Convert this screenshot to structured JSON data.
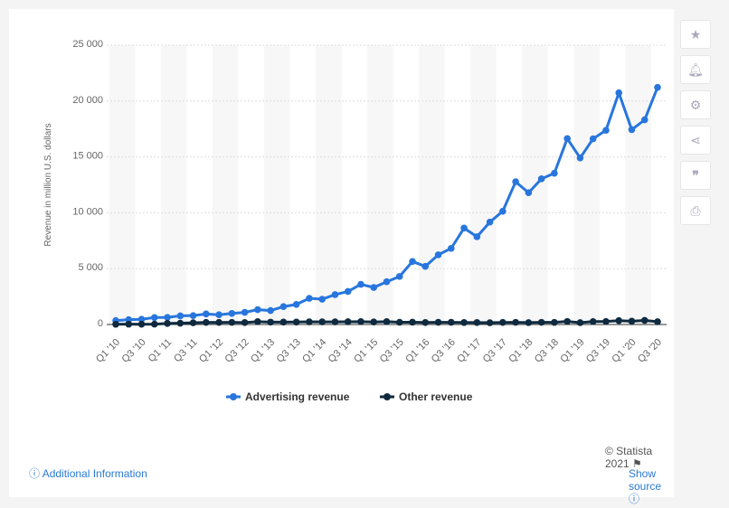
{
  "chart_data": {
    "type": "line",
    "ylabel": "Revenue in million U.S. dollars",
    "ylim": [
      0,
      25000
    ],
    "yticks": [
      0,
      5000,
      10000,
      15000,
      20000,
      25000
    ],
    "ytick_labels": [
      "0",
      "5 000",
      "10 000",
      "15 000",
      "20 000",
      "25 000"
    ],
    "grid": true,
    "legend_position": "bottom",
    "x": [
      "Q1 '10",
      "Q2 '10",
      "Q3 '10",
      "Q4 '10",
      "Q1 '11",
      "Q2 '11",
      "Q3 '11",
      "Q4 '11",
      "Q1 '12",
      "Q2 '12",
      "Q3 '12",
      "Q4 '12",
      "Q1 '13",
      "Q2 '13",
      "Q3 '13",
      "Q4 '13",
      "Q1 '14",
      "Q2 '14",
      "Q3 '14",
      "Q4 '14",
      "Q1 '15",
      "Q2 '15",
      "Q3 '15",
      "Q4 '15",
      "Q1 '16",
      "Q2 '16",
      "Q3 '16",
      "Q4 '16",
      "Q1 '17",
      "Q2 '17",
      "Q3 '17",
      "Q4 '17",
      "Q1 '18",
      "Q2 '18",
      "Q3 '18",
      "Q4 '18",
      "Q1 '19",
      "Q2 '19",
      "Q3 '19",
      "Q4 '19",
      "Q1 '20",
      "Q2 '20",
      "Q3 '20"
    ],
    "series": [
      {
        "name": "Advertising revenue",
        "color": "#2876dd",
        "values": [
          345,
          431,
          467,
          625,
          637,
          776,
          798,
          943,
          872,
          992,
          1086,
          1329,
          1245,
          1599,
          1798,
          2344,
          2265,
          2676,
          2957,
          3594,
          3317,
          3827,
          4299,
          5637,
          5201,
          6239,
          6816,
          8629,
          7857,
          9164,
          10142,
          12779,
          11795,
          13038,
          13539,
          16640,
          14912,
          16624,
          17383,
          20736,
          17440,
          18321,
          21221
        ]
      },
      {
        "name": "Other revenue",
        "color": "#0f2a3f",
        "values": [
          20,
          30,
          25,
          31,
          94,
          119,
          156,
          188,
          186,
          192,
          176,
          256,
          213,
          214,
          218,
          241,
          237,
          234,
          246,
          257,
          226,
          255,
          202,
          204,
          181,
          197,
          195,
          180,
          175,
          157,
          186,
          193,
          171,
          193,
          188,
          274,
          165,
          262,
          269,
          346,
          297,
          366,
          249
        ]
      }
    ]
  },
  "footer": {
    "copyright": "© Statista 2021",
    "additional_info": "Additional Information",
    "show_source": "Show source"
  },
  "sidebar": [
    "star-icon",
    "bell-icon",
    "gear-icon",
    "share-icon",
    "quote-icon",
    "print-icon"
  ]
}
